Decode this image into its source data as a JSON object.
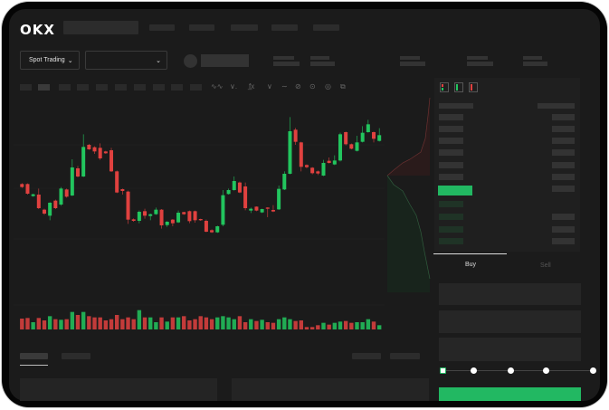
{
  "header": {
    "logo": "OKX",
    "mode_selector": {
      "label": "Spot Trading",
      "icon": "chevron-down-icon"
    },
    "pair_dropdown_icon": "chevron-down-icon"
  },
  "colors": {
    "up": "#22c55e",
    "down": "#e0413f",
    "accent": "#22b862",
    "background": "#1b1b1b",
    "frame": "#050505"
  },
  "order_tabs": [
    {
      "label": "Buy",
      "active": true
    },
    {
      "label": "Sell",
      "active": false
    }
  ],
  "order_book": {
    "header_icons": [
      "order-book-both-icon",
      "order-book-bids-icon",
      "order-book-asks-icon"
    ]
  },
  "slider": {
    "value_percent": 0,
    "stops": [
      0,
      25,
      50,
      75,
      100
    ]
  },
  "chart_data": {
    "type": "candlestick",
    "grid": true,
    "candles": [
      [
        170,
        173,
        157,
        160
      ],
      [
        170,
        172,
        135,
        138
      ],
      [
        130,
        138,
        128,
        136
      ],
      [
        135,
        155,
        87,
        90
      ],
      [
        85,
        88,
        68,
        72
      ],
      [
        65,
        110,
        50,
        108
      ],
      [
        115,
        118,
        87,
        90
      ],
      [
        102,
        160,
        98,
        155
      ],
      [
        152,
        155,
        125,
        128
      ],
      [
        132,
        252,
        130,
        225
      ],
      [
        222,
        230,
        192,
        195
      ],
      [
        195,
        335,
        193,
        293
      ],
      [
        300,
        303,
        283,
        285
      ],
      [
        292,
        295,
        270,
        278
      ],
      [
        290,
        305,
        250,
        255
      ],
      [
        278,
        280,
        270,
        272
      ],
      [
        282,
        290,
        210,
        212
      ],
      [
        212,
        215,
        140,
        142
      ],
      [
        153,
        155,
        135,
        147
      ],
      [
        145,
        148,
        38,
        52
      ],
      [
        53,
        56,
        45,
        48
      ],
      [
        48,
        82,
        40,
        78
      ],
      [
        80,
        88,
        55,
        65
      ],
      [
        64,
        72,
        50,
        70
      ],
      [
        70,
        92,
        68,
        85
      ],
      [
        85,
        87,
        22,
        33
      ],
      [
        34,
        47,
        28,
        45
      ],
      [
        52,
        54,
        30,
        40
      ],
      [
        43,
        82,
        41,
        75
      ],
      [
        77,
        78,
        68,
        70
      ],
      [
        80,
        82,
        40,
        47
      ],
      [
        80,
        82,
        42,
        50
      ],
      [
        54,
        55,
        48,
        50
      ],
      [
        48,
        52,
        10,
        12
      ],
      [
        17,
        20,
        8,
        10
      ],
      [
        10,
        32,
        8,
        30
      ],
      [
        35,
        150,
        30,
        133
      ],
      [
        137,
        155,
        135,
        150
      ],
      [
        150,
        195,
        148,
        180
      ],
      [
        175,
        178,
        140,
        142
      ],
      [
        162,
        175,
        83,
        90
      ],
      [
        82,
        92,
        74,
        88
      ],
      [
        95,
        96,
        80,
        82
      ],
      [
        76,
        88,
        74,
        87
      ],
      [
        92,
        93,
        60,
        88
      ],
      [
        84,
        100,
        77,
        79
      ],
      [
        86,
        165,
        84,
        154
      ],
      [
        152,
        212,
        150,
        204
      ],
      [
        204,
        392,
        202,
        345
      ],
      [
        350,
        356,
        300,
        310
      ],
      [
        308,
        310,
        212,
        227
      ],
      [
        233,
        235,
        222,
        226
      ],
      [
        224,
        226,
        202,
        206
      ],
      [
        212,
        215,
        200,
        205
      ],
      [
        198,
        250,
        196,
        240
      ],
      [
        247,
        258,
        238,
        240
      ],
      [
        235,
        265,
        233,
        248
      ],
      [
        248,
        340,
        245,
        335
      ],
      [
        342,
        344,
        298,
        302
      ],
      [
        302,
        304,
        285,
        287
      ],
      [
        280,
        330,
        278,
        308
      ],
      [
        310,
        362,
        308,
        340
      ],
      [
        342,
        383,
        340,
        368
      ],
      [
        342,
        344,
        308,
        320
      ],
      [
        313,
        355,
        311,
        332
      ]
    ],
    "volume": [
      36,
      38,
      24,
      38,
      30,
      44,
      34,
      32,
      34,
      58,
      48,
      58,
      44,
      40,
      40,
      30,
      34,
      48,
      34,
      40,
      34,
      64,
      40,
      40,
      24,
      40,
      26,
      40,
      40,
      44,
      30,
      34,
      44,
      40,
      34,
      40,
      44,
      40,
      34,
      44,
      24,
      34,
      28,
      32,
      24,
      22,
      34,
      40,
      34,
      28,
      30,
      8,
      8,
      14,
      22,
      16,
      22,
      26,
      28,
      22,
      24,
      24,
      34,
      26,
      14
    ]
  }
}
